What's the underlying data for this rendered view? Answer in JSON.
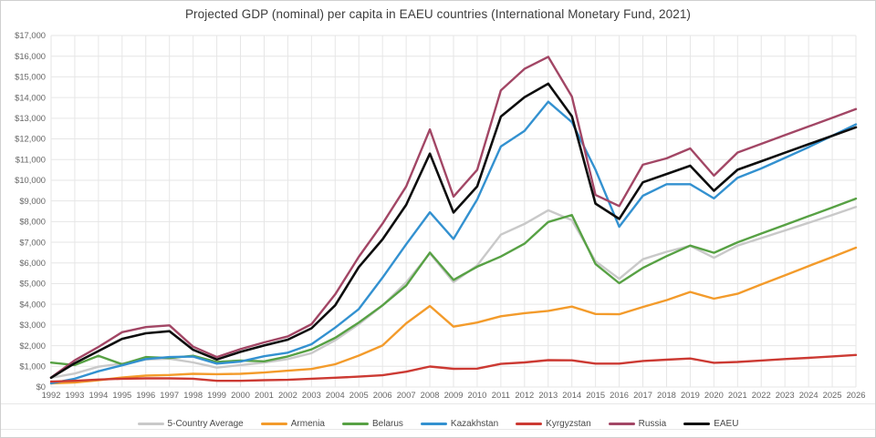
{
  "figure": {
    "title": "Projected GDP (nominal) per capita in EAEU countries (International Monetary Fund, 2021)"
  },
  "chart_data": {
    "type": "line",
    "title": "Projected GDP (nominal) per capita in EAEU countries (International Monetary Fund, 2021)",
    "x": [
      1992,
      1993,
      1994,
      1995,
      1996,
      1997,
      1998,
      1999,
      2000,
      2001,
      2002,
      2003,
      2004,
      2005,
      2006,
      2007,
      2008,
      2009,
      2010,
      2011,
      2012,
      2013,
      2014,
      2015,
      2016,
      2017,
      2018,
      2019,
      2020,
      2021,
      2022,
      2023,
      2024,
      2025,
      2026
    ],
    "xlabel": "",
    "ylabel": "",
    "y_axis": {
      "min": 0,
      "max": 17000,
      "step": 1000,
      "tick_prefix": "$"
    },
    "grid": true,
    "legend_position": "bottom",
    "colors": {
      "background": "#ffffff",
      "grid": "#e6e6e6",
      "title_text": "#3c3c3c",
      "tick_text": "#666666",
      "legend_text": "#4a4a4a"
    },
    "series": [
      {
        "name": "5-Country Average",
        "color": "#c9c9c9",
        "width": 2.4,
        "values": [
          450,
          650,
          980,
          1130,
          1330,
          1370,
          1190,
          940,
          1060,
          1180,
          1350,
          1640,
          2260,
          3040,
          3940,
          5060,
          6460,
          5070,
          5880,
          7370,
          7890,
          8550,
          8070,
          6080,
          5230,
          6180,
          6540,
          6830,
          6250,
          6840,
          7200,
          7570,
          7940,
          8320,
          8710
        ]
      },
      {
        "name": "Armenia",
        "color": "#f39b2b",
        "width": 2.4,
        "values": [
          170,
          220,
          330,
          460,
          550,
          580,
          640,
          620,
          640,
          700,
          790,
          870,
          1100,
          1520,
          2010,
          3080,
          3920,
          2920,
          3120,
          3420,
          3570,
          3680,
          3890,
          3530,
          3520,
          3870,
          4200,
          4600,
          4270,
          4510,
          4960,
          5400,
          5850,
          6290,
          6740
        ]
      },
      {
        "name": "Belarus",
        "color": "#57a144",
        "width": 2.4,
        "values": [
          1180,
          1060,
          1510,
          1100,
          1450,
          1400,
          1510,
          1210,
          1280,
          1240,
          1480,
          1820,
          2380,
          3120,
          3950,
          4900,
          6500,
          5180,
          5820,
          6310,
          6930,
          7980,
          8320,
          5950,
          5020,
          5760,
          6330,
          6840,
          6490,
          7000,
          7420,
          7840,
          8260,
          8680,
          9110
        ]
      },
      {
        "name": "Kazakhstan",
        "color": "#3391d0",
        "width": 2.4,
        "values": [
          180,
          400,
          760,
          1050,
          1350,
          1450,
          1470,
          1130,
          1230,
          1490,
          1660,
          2070,
          2870,
          3770,
          5290,
          6900,
          8450,
          7160,
          9070,
          11630,
          12390,
          13800,
          12810,
          10510,
          7750,
          9250,
          9810,
          9810,
          9120,
          10120,
          10570,
          11080,
          11600,
          12150,
          12700
        ]
      },
      {
        "name": "Kyrgyzstan",
        "color": "#cc3a33",
        "width": 2.4,
        "values": [
          260,
          300,
          360,
          400,
          420,
          420,
          400,
          300,
          300,
          330,
          350,
          400,
          450,
          500,
          570,
          740,
          990,
          880,
          890,
          1120,
          1190,
          1300,
          1290,
          1130,
          1130,
          1260,
          1320,
          1380,
          1170,
          1210,
          1280,
          1350,
          1410,
          1480,
          1550
        ]
      },
      {
        "name": "Russia",
        "color": "#a24665",
        "width": 2.4,
        "values": [
          460,
          1290,
          1940,
          2650,
          2900,
          2980,
          1950,
          1450,
          1830,
          2160,
          2450,
          3040,
          4480,
          6300,
          7900,
          9700,
          12460,
          9210,
          10500,
          14350,
          15390,
          15970,
          14050,
          9290,
          8750,
          10750,
          11060,
          11540,
          10220,
          11340,
          11760,
          12180,
          12600,
          13020,
          13440
        ]
      },
      {
        "name": "EAEU",
        "color": "#0d0d0d",
        "width": 2.6,
        "values": [
          450,
          1150,
          1740,
          2330,
          2600,
          2700,
          1800,
          1330,
          1700,
          2010,
          2290,
          2840,
          3950,
          5800,
          7140,
          8810,
          11290,
          8440,
          9700,
          13080,
          14020,
          14670,
          13100,
          8870,
          8130,
          9900,
          10300,
          10700,
          9490,
          10510,
          10920,
          11330,
          11740,
          12150,
          12560
        ]
      }
    ]
  }
}
